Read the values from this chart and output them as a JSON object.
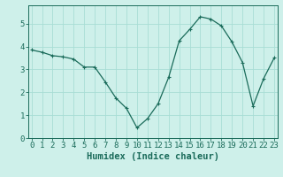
{
  "x_values": [
    0,
    1,
    2,
    3,
    4,
    5,
    6,
    7,
    8,
    9,
    10,
    11,
    12,
    13,
    14,
    15,
    16,
    17,
    18,
    19,
    20,
    21,
    22,
    23
  ],
  "y_values": [
    3.85,
    3.75,
    3.6,
    3.55,
    3.45,
    3.1,
    3.1,
    2.45,
    1.75,
    1.3,
    0.45,
    0.85,
    1.5,
    2.65,
    4.25,
    4.75,
    5.3,
    5.2,
    4.9,
    4.2,
    3.3,
    1.4,
    2.6,
    3.5
  ],
  "line_color": "#1a6b5a",
  "marker": "+",
  "marker_size": 3.5,
  "marker_linewidth": 0.8,
  "linewidth": 0.9,
  "xlabel": "Humidex (Indice chaleur)",
  "xlim": [
    -0.3,
    23.3
  ],
  "ylim": [
    0,
    5.8
  ],
  "yticks": [
    0,
    1,
    2,
    3,
    4,
    5
  ],
  "xticks": [
    0,
    1,
    2,
    3,
    4,
    5,
    6,
    7,
    8,
    9,
    10,
    11,
    12,
    13,
    14,
    15,
    16,
    17,
    18,
    19,
    20,
    21,
    22,
    23
  ],
  "bg_color": "#cef0ea",
  "grid_color": "#a8ddd5",
  "xlabel_fontsize": 7.5,
  "tick_fontsize": 6.5
}
